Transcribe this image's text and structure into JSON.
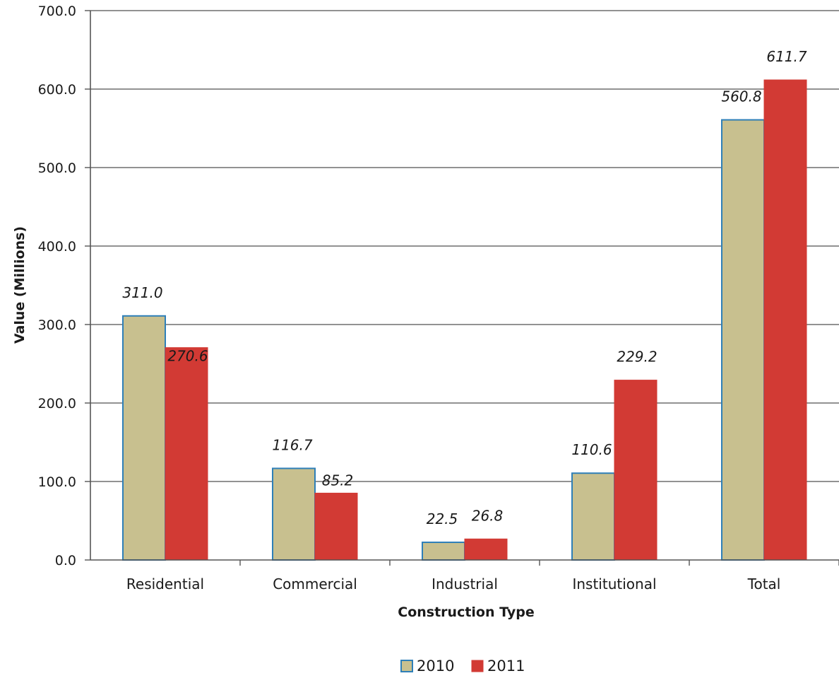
{
  "chart_data": {
    "type": "bar",
    "categories": [
      "Residential",
      "Commercial",
      "Industrial",
      "Institutional",
      "Total"
    ],
    "series": [
      {
        "name": "2010",
        "values": [
          311.0,
          116.7,
          22.5,
          110.6,
          560.8
        ],
        "labels": [
          "311.0",
          "116.7",
          "22.5",
          "110.6",
          "560.8"
        ],
        "color": "#c8c08f",
        "edge_color": "#2e7fb8"
      },
      {
        "name": "2011",
        "values": [
          270.6,
          85.2,
          26.8,
          229.2,
          611.7
        ],
        "labels": [
          "270.6",
          "85.2",
          "26.8",
          "229.2",
          "611.7"
        ],
        "color": "#d23a34",
        "edge_color": "#d23a34"
      }
    ],
    "title": "",
    "xlabel": "Construction Type",
    "ylabel": "Value (Millions)",
    "ylim": [
      0,
      700
    ],
    "yticks": [
      "0.0",
      "100.0",
      "200.0",
      "300.0",
      "400.0",
      "500.0",
      "600.0",
      "700.0"
    ],
    "grid": true,
    "legend_position": "bottom"
  }
}
